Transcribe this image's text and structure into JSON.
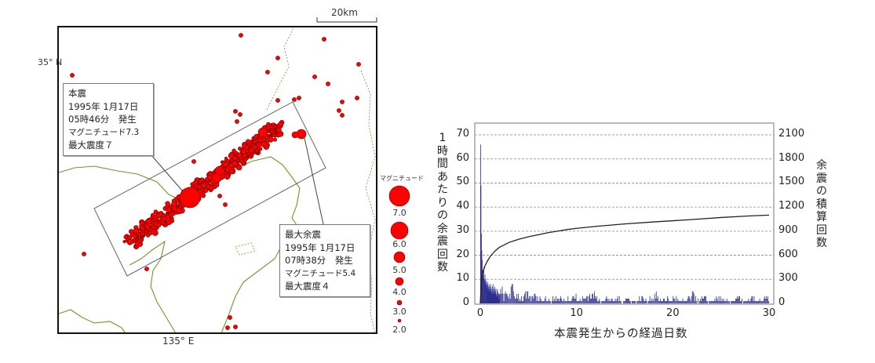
{
  "map": {
    "lat_label": "35° N",
    "lon_label": "135° E",
    "scale_label": "20km",
    "mainshock": {
      "lines": [
        "本震",
        "1995年 1月17日",
        "05時46分　発生",
        "マグニチュード7.3",
        "最大震度７"
      ],
      "magnitude": 7.3
    },
    "largest_aftershock": {
      "lines": [
        "最大余震",
        "1995年 1月17日",
        "07時38分　発生",
        "マグニチュード5.4",
        "最大震度４"
      ],
      "magnitude": 5.4
    },
    "legend": {
      "title": "マグニチュード",
      "magnitudes": [
        "7.0",
        "6.0",
        "5.0",
        "4.0",
        "3.0",
        "2.0"
      ]
    },
    "colors": {
      "quake": "#ff0000",
      "coast": "#6a9a2a",
      "frame": "#111111"
    }
  },
  "chart_data": {
    "type": "bar+line",
    "xlabel": "本震発生からの経過日数",
    "ylabel_left": "1時間あたりの余震回数",
    "ylabel_right": "余震の積算回数",
    "xlim": [
      0,
      30
    ],
    "ylim_left": [
      0,
      70
    ],
    "ylim_right": [
      0,
      2100
    ],
    "x_ticks": [
      "0",
      "10",
      "20",
      "30"
    ],
    "y_ticks_left": [
      "0",
      "10",
      "20",
      "30",
      "40",
      "50",
      "60",
      "70"
    ],
    "y_ticks_right": [
      "0",
      "300",
      "600",
      "900",
      "1200",
      "1500",
      "1800",
      "2100"
    ],
    "grid": "horizontal dashed",
    "colors": {
      "bars": "#2e2e8f",
      "line": "#222222"
    },
    "hourly_counts": {
      "first_48_hours": [
        66,
        49,
        29,
        22,
        18,
        14,
        12,
        11,
        15,
        10,
        9,
        12,
        8,
        10,
        9,
        7,
        8,
        6,
        9,
        7,
        6,
        8,
        5,
        7,
        6,
        8,
        5,
        6,
        4,
        7,
        5,
        8,
        4,
        6,
        5,
        7,
        4,
        5,
        6,
        3,
        4,
        6,
        3,
        5,
        4,
        2,
        4,
        3
      ],
      "half_day_from_day2": [
        4,
        3,
        5,
        3,
        2,
        3,
        2,
        3,
        2,
        2,
        1,
        2,
        2,
        1,
        2,
        3,
        1,
        2,
        3,
        3,
        2,
        1,
        2,
        1,
        2,
        1,
        2,
        1,
        1,
        2,
        1,
        2,
        3,
        1,
        2,
        1,
        2,
        1,
        1,
        2,
        3,
        1,
        2,
        1,
        1,
        2,
        1,
        1,
        1,
        2,
        1,
        1,
        2,
        1,
        1,
        2
      ]
    },
    "cumulative": {
      "days": [
        0,
        0.05,
        0.1,
        0.2,
        0.3,
        0.5,
        0.75,
        1,
        1.5,
        2,
        3,
        4,
        5,
        6,
        7,
        8,
        9,
        10,
        12,
        15,
        18,
        20,
        22,
        25,
        28,
        30
      ],
      "counts": [
        0,
        120,
        250,
        340,
        400,
        470,
        530,
        580,
        650,
        700,
        760,
        800,
        830,
        855,
        880,
        900,
        920,
        935,
        960,
        990,
        1015,
        1030,
        1045,
        1070,
        1090,
        1100
      ]
    }
  }
}
